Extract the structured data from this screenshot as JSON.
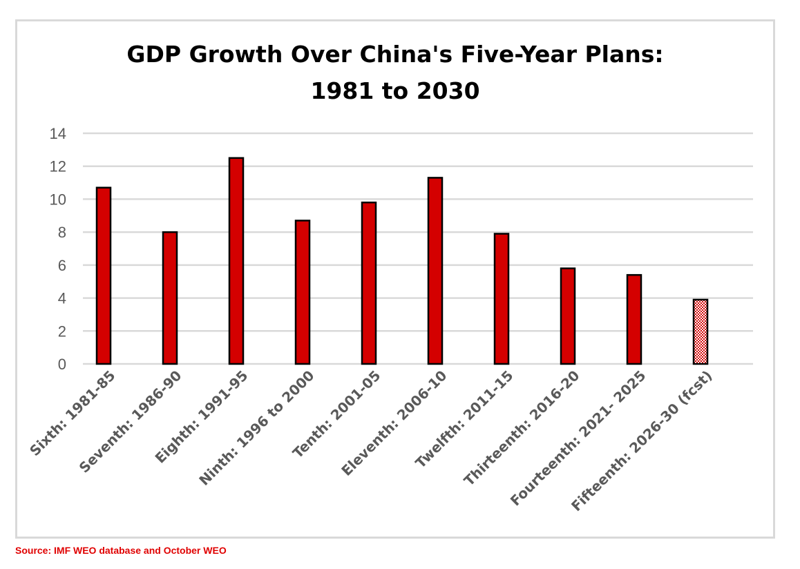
{
  "chart_data": {
    "type": "bar",
    "title_lines": [
      "GDP Growth Over China's Five-Year Plans:",
      "1981 to 2030"
    ],
    "categories": [
      "Sixth: 1981-85",
      "Seventh: 1986-90",
      "Eighth: 1991-95",
      "Ninth: 1996 to 2000",
      "Tenth: 2001-05",
      "Eleventh: 2006-10",
      "Twelfth: 2011-15",
      "Thirteenth: 2016-20",
      "Fourteenth: 2021- 2025",
      "Fifteenth: 2026-30 (fcst)"
    ],
    "values": [
      10.7,
      8.0,
      12.5,
      8.7,
      9.8,
      11.3,
      7.9,
      5.8,
      5.4,
      3.9
    ],
    "forecast_flags": [
      false,
      false,
      false,
      false,
      false,
      false,
      false,
      false,
      false,
      true
    ],
    "ylim": [
      0,
      14
    ],
    "yticks": [
      0,
      2,
      4,
      6,
      8,
      10,
      12,
      14
    ],
    "xlabel": "",
    "ylabel": "",
    "grid": true,
    "legend": "none",
    "bar_color": "#d40000",
    "forecast_pattern_color": "#d40000",
    "outline_color": "#000000",
    "grid_color": "#d9d9d9"
  },
  "source": "Source: IMF WEO database and October WEO",
  "source_color": "#e00000"
}
